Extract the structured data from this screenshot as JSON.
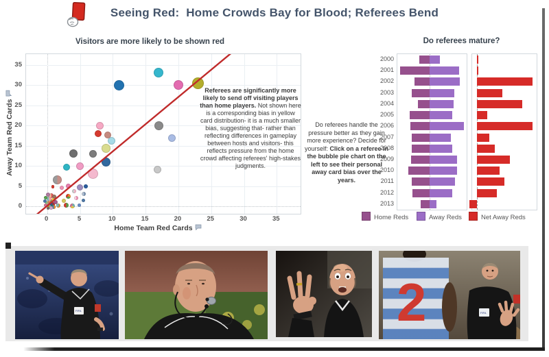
{
  "header": {
    "title": "Seeing Red:  Home Crowds Bay for Blood; Referees Bend",
    "icon": "red-card-in-hand"
  },
  "annotations": {
    "main": {
      "bold": "Referees are significantly more likely to send off visiting players than home players.",
      "rest": "  Not shown here is a corresponding bias in yellow card distribution- it is a much smaller bias, suggesting that- rather than reflecting differences in gameplay between hosts and visitors- this reflects pressure from the home crowd affecting referees' high-stakes judgments."
    },
    "side": {
      "normal": "Do referees handle the pressure better as they gain more experience?  Decide for yourself: ",
      "bold": "Click on a referee in the bubble pie chart on the left to see their personal away card bias over the years."
    }
  },
  "chart_data": [
    {
      "type": "scatter",
      "title": "Visitors are more likely to be shown red",
      "xlabel": "Home Team Red Cards",
      "ylabel": "Away Team Red Cards",
      "x_ticks": [
        0,
        5,
        10,
        15,
        20,
        25,
        30,
        35
      ],
      "y_ticks": [
        0,
        5,
        10,
        15,
        20,
        25,
        30,
        35
      ],
      "xlim": [
        -3.2,
        38.6
      ],
      "ylim": [
        -2.0,
        37.6
      ],
      "grid": true,
      "trend_line": {
        "x1": -2,
        "y1": -2.6,
        "x2": 28,
        "y2": 37.8,
        "color": "#c02b2b"
      },
      "points_note": "each point = referee bubble-pie [x home reds, y away reds, radius px, slice colors]",
      "points": [
        [
          17,
          33,
          7,
          [
            "#35b7cd"
          ]
        ],
        [
          23,
          30.5,
          8.5,
          [
            "#b3ad2c"
          ]
        ],
        [
          20,
          30,
          7,
          [
            "#e36cb0"
          ]
        ],
        [
          11,
          30,
          7.5,
          [
            "#2272b0"
          ]
        ],
        [
          17,
          20,
          6.5,
          [
            "#8a8a8a"
          ]
        ],
        [
          19,
          16.8,
          5.5,
          [
            "#a9bce4"
          ]
        ],
        [
          16.8,
          9,
          5.5,
          [
            "#c8c8c8"
          ]
        ],
        [
          8,
          20,
          5.5,
          [
            "#f6a9c4"
          ]
        ],
        [
          7.8,
          18,
          5,
          [
            "#d63a2f"
          ]
        ],
        [
          9.2,
          17.6,
          5,
          [
            "#c68b80"
          ]
        ],
        [
          9.8,
          16.2,
          5.5,
          [
            "#a6dbe8"
          ]
        ],
        [
          9,
          14.3,
          6.5,
          [
            "#d9dc8f"
          ]
        ],
        [
          7,
          13,
          5.5,
          [
            "#7d7d7d"
          ]
        ],
        [
          4,
          13,
          6,
          [
            "#6f6f6f"
          ]
        ],
        [
          9,
          11,
          6.5,
          [
            "#31699f"
          ]
        ],
        [
          3,
          9.6,
          5,
          [
            "#2fb5c4"
          ]
        ],
        [
          5,
          10,
          5.5,
          [
            "#f09cc4"
          ]
        ],
        [
          7,
          8,
          7.5,
          [
            "#f4b9ce"
          ]
        ],
        [
          1.5,
          6.6,
          6.5,
          [
            "#c69089",
            "#9c9c9c"
          ]
        ],
        [
          3.2,
          5,
          3.5,
          [
            "#e87fb0"
          ]
        ],
        [
          5,
          4.6,
          4.5,
          [
            "#9e8ebe"
          ]
        ],
        [
          5.9,
          4.9,
          3,
          [
            "#2a5c9e"
          ]
        ],
        [
          0.9,
          4.8,
          2.2,
          [
            "#d63a2f"
          ]
        ],
        [
          2.2,
          4.5,
          3,
          [
            "#ef93b5"
          ]
        ],
        [
          4.1,
          3.7,
          3,
          [
            "#f3b6c9",
            "#cccccc"
          ]
        ],
        [
          5.6,
          3.1,
          3,
          [
            "#7f98b5",
            "#b9c6d6"
          ]
        ],
        [
          3.2,
          2.5,
          3.5,
          [
            "#f28e2b",
            "#59a14f",
            "#d63a2f"
          ]
        ],
        [
          4.4,
          2,
          3,
          [
            "#ef93b5",
            "#f9d1e0"
          ]
        ],
        [
          5.5,
          1.4,
          2.7,
          [
            "#4e79a7"
          ]
        ],
        [
          2.5,
          1.4,
          3,
          [
            "#d9c95f"
          ]
        ],
        [
          1.7,
          0.1,
          3,
          [
            "#f28e2b"
          ]
        ],
        [
          2.9,
          0.3,
          3.5,
          [
            "#59a14f",
            "#d63a2f"
          ]
        ],
        [
          3.9,
          0.1,
          3.5,
          [
            "#76b7b2",
            "#e8c84a",
            "#d37295"
          ]
        ],
        [
          4.9,
          0.2,
          2.5,
          [
            "#6b8fc9"
          ]
        ],
        [
          0.1,
          2.9,
          3,
          [
            "#b07aa1"
          ]
        ],
        [
          0.6,
          2.6,
          3.5,
          [
            "#e15759",
            "#f1cea3"
          ]
        ],
        [
          -0.2,
          2.2,
          2.5,
          [
            "#59a14f"
          ]
        ],
        [
          1.1,
          2.3,
          3,
          [
            "#9c755f"
          ]
        ],
        [
          0.3,
          1.8,
          3.5,
          [
            "#ff9da7",
            "#86bcb6"
          ]
        ],
        [
          0.9,
          1.6,
          2.5,
          [
            "#edc948"
          ]
        ],
        [
          -0.3,
          1.3,
          2.5,
          [
            "#4e79a7"
          ]
        ],
        [
          0.5,
          1.1,
          4,
          [
            "#59a14f",
            "#e15759",
            "#f28e2b"
          ]
        ],
        [
          1.3,
          1,
          3,
          [
            "#a65b8c"
          ]
        ],
        [
          0,
          0.7,
          3,
          [
            "#c48a7a",
            "#8cd17d"
          ]
        ],
        [
          0.8,
          0.5,
          3.5,
          [
            "#b32d2d",
            "#2f7d4f",
            "#324f8e"
          ]
        ],
        [
          -0.2,
          0.2,
          2.5,
          [
            "#d37295"
          ]
        ],
        [
          0.3,
          -0.1,
          3,
          [
            "#76b7b2",
            "#b6992d"
          ]
        ],
        [
          1,
          -0.2,
          2.7,
          [
            "#f28e2b",
            "#4e79a7"
          ]
        ],
        [
          1.6,
          0.3,
          2.3,
          [
            "#86bcb6"
          ]
        ],
        [
          0.1,
          -0.5,
          2,
          [
            "#79706e"
          ]
        ],
        [
          0.6,
          -0.4,
          2.2,
          [
            "#d4a6c8"
          ]
        ]
      ]
    },
    {
      "type": "bar",
      "title": "Do referees mature?",
      "categories": [
        2000,
        2001,
        2002,
        2003,
        2004,
        2005,
        2006,
        2007,
        2008,
        2009,
        2010,
        2011,
        2012,
        2013
      ],
      "series": [
        {
          "name": "Home Reds",
          "color": "#96508d",
          "values": [
            15,
            43,
            22,
            26,
            17,
            29,
            28,
            26,
            26,
            27,
            31,
            26,
            25,
            13
          ]
        },
        {
          "name": "Away Reds",
          "color": "#9b6dc6",
          "values": [
            15,
            43,
            44,
            36,
            35,
            33,
            50,
            31,
            33,
            40,
            40,
            37,
            33,
            10
          ]
        },
        {
          "name": "Net Away Reds",
          "color": "#d62b28",
          "values": [
            0,
            0,
            22,
            10,
            18,
            4,
            22,
            5,
            7,
            13,
            9,
            11,
            8,
            -3
          ]
        }
      ],
      "legend": [
        "Home Reds",
        "Away Reds",
        "Net Away Reds"
      ],
      "legend_position": "bottom",
      "layout": "diverging home/away panel + net panel"
    }
  ],
  "photos": {
    "jersey_number": "2",
    "badge_text": "FIFA",
    "items": [
      {
        "name": "referee-pointing-crowd"
      },
      {
        "name": "referee-whistle-closeup"
      },
      {
        "name": "referee-three-fingers"
      },
      {
        "name": "referee-hand-up-with-player"
      }
    ]
  }
}
